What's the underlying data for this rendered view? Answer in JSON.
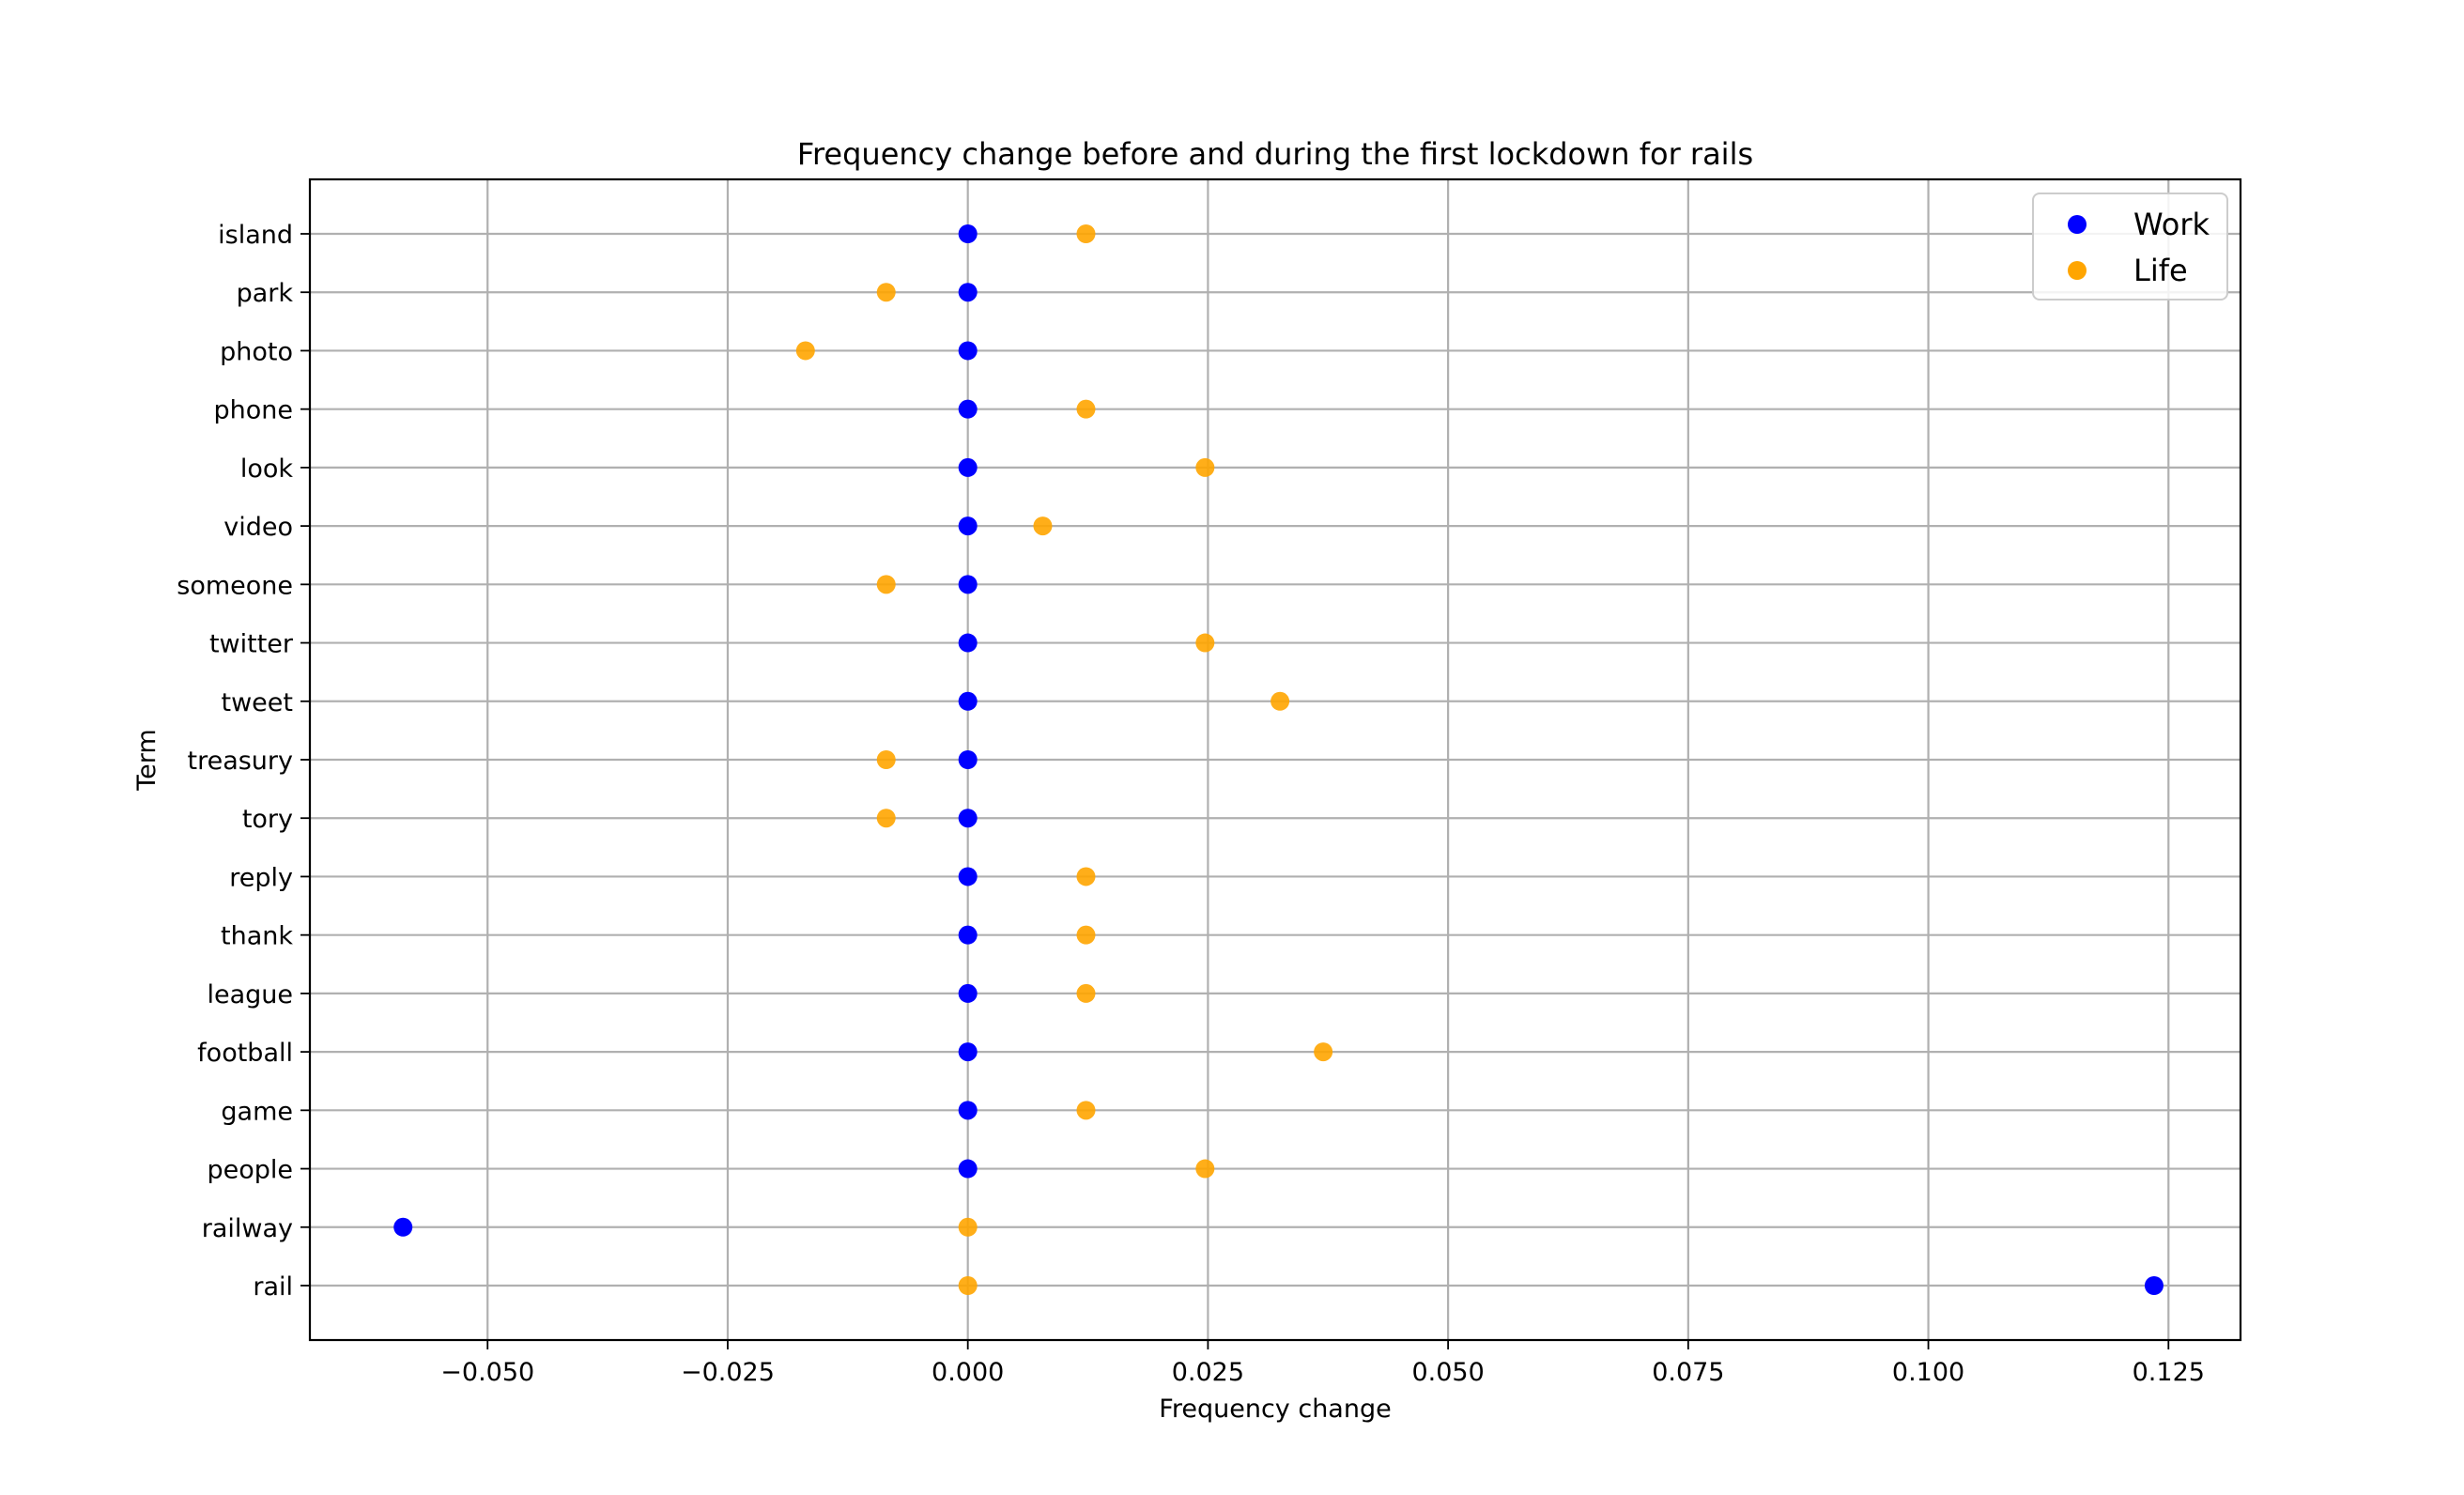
{
  "chart_data": {
    "type": "scatter",
    "title": "Frequency change before and during the first lockdown for rails",
    "xlabel": "Frequency change",
    "ylabel": "Term",
    "xlim": [
      -0.0685,
      0.1325
    ],
    "x_ticks": [
      -0.05,
      -0.025,
      0.0,
      0.025,
      0.05,
      0.075,
      0.1,
      0.125
    ],
    "x_tick_labels": [
      "−0.050",
      "−0.025",
      "0.000",
      "0.025",
      "0.050",
      "0.075",
      "0.100",
      "0.125"
    ],
    "categories": [
      "rail",
      "railway",
      "people",
      "game",
      "football",
      "league",
      "thank",
      "reply",
      "tory",
      "treasury",
      "tweet",
      "twitter",
      "someone",
      "video",
      "look",
      "phone",
      "photo",
      "park",
      "island"
    ],
    "grid": true,
    "legend_position": "top-right",
    "series": [
      {
        "name": "Work",
        "color": "#0000ff",
        "values": [
          0.1235,
          -0.0588,
          0.0,
          0.0,
          0.0,
          0.0,
          0.0,
          0.0,
          0.0,
          0.0,
          0.0,
          0.0,
          0.0,
          0.0,
          0.0,
          0.0,
          0.0,
          0.0,
          0.0
        ]
      },
      {
        "name": "Life",
        "color": "#ffa500",
        "values": [
          0.0,
          0.0,
          0.0247,
          0.0123,
          0.037,
          0.0123,
          0.0123,
          0.0123,
          -0.0085,
          -0.0085,
          0.0325,
          0.0247,
          -0.0085,
          0.0078,
          0.0247,
          0.0123,
          -0.0169,
          -0.0085,
          0.0123
        ]
      }
    ]
  }
}
